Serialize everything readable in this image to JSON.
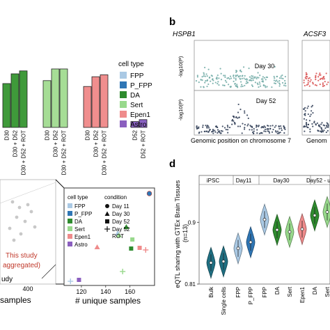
{
  "panel_labels": {
    "b": "b",
    "d": "d"
  },
  "colors": {
    "FPP": "#aac9e4",
    "P_FPP": "#2f76b5",
    "DA": "#2e8b2e",
    "Sert": "#98d98c",
    "Epen1": "#ef8b8b",
    "Astro": "#8b5fbf",
    "ipsc": "#1f6f82",
    "manh_teal": "#6fa9a4",
    "manh_dark": "#2b3a52",
    "manh_red": "#d84a4a"
  },
  "chart_data": [
    {
      "type": "bar",
      "panel": "a-top",
      "categories": [
        "D30",
        "D30 + D52",
        "D30 + D52 + ROT",
        "D30",
        "D30 + D52",
        "D30 + D52 + ROT",
        "D30",
        "D30 + D52",
        "D30 + D52 + ROT",
        "D52",
        "D52 + ROT"
      ],
      "group_colors": [
        "DA",
        "DA",
        "DA",
        "Sert",
        "Sert",
        "Sert",
        "Epen1",
        "Epen1",
        "Epen1",
        "Astro",
        "Astro"
      ],
      "values": [
        0.45,
        0.55,
        0.58,
        0.48,
        0.6,
        0.6,
        0.42,
        0.52,
        0.54,
        0.06,
        0.08
      ],
      "legend_title": "cell type",
      "legend": [
        "FPP",
        "P_FPP",
        "DA",
        "Sert",
        "Epen1",
        "Astro"
      ]
    },
    {
      "type": "scatter",
      "panel": "a-bottom",
      "xlabel": "# unique samples",
      "x_ticks": [
        "120",
        "140",
        "160"
      ],
      "left_label": "samples",
      "left_tick": "400",
      "annotation": "This study\n(aggregated)",
      "annotation_partial": "udy",
      "legend_cell_title": "cell type",
      "legend_condition_title": "condition",
      "legend_cells": [
        "FPP",
        "P_FPP",
        "DA",
        "Sert",
        "Epen1",
        "Astro"
      ],
      "legend_conditions": [
        "Day 11",
        "Day 30",
        "Day 52",
        "Day 52\nROT"
      ],
      "points": [
        {
          "x": 118,
          "cell": "Astro",
          "cond": "Day 52"
        },
        {
          "x": 111,
          "cell": "FPP",
          "cond": "Day 52 ROT"
        },
        {
          "x": 133,
          "cell": "Epen1",
          "cond": "Day 30"
        },
        {
          "x": 150,
          "cell": "FPP",
          "cond": "Day 30"
        },
        {
          "x": 151,
          "cell": "Sert",
          "cond": "Day 30"
        },
        {
          "x": 154,
          "cell": "Sert",
          "cond": "Day 52 ROT"
        },
        {
          "x": 157,
          "cell": "DA",
          "cond": "Day 30"
        },
        {
          "x": 161,
          "cell": "DA",
          "cond": "Day 52"
        },
        {
          "x": 162,
          "cell": "Sert",
          "cond": "Day 52"
        },
        {
          "x": 168,
          "cell": "Epen1",
          "cond": "Day 52"
        },
        {
          "x": 173,
          "cell": "Epen1",
          "cond": "Day 52 ROT"
        },
        {
          "x": 176,
          "cell": "P_FPP",
          "cond": "Day 11"
        }
      ]
    },
    {
      "type": "scatter",
      "panel": "b",
      "gene_left": "HSPB1",
      "gene_right": "ACSF3",
      "ylabel": "-log10(P)",
      "xlabel": "Genomic position on chromosome 7",
      "xlabel_right": "Genom",
      "tracks": [
        {
          "label": "Day 30"
        },
        {
          "label": "Day 52"
        }
      ]
    },
    {
      "type": "violin",
      "panel": "d",
      "ylabel": "eQTL sharing with GTEx Brain Tissues\n(n=13)",
      "y_ticks": [
        "0.9",
        "0.81"
      ],
      "ylim": [
        0.81,
        0.95
      ],
      "group_labels": [
        "iPSC",
        "Day11",
        "Day30",
        "Day52 - u"
      ],
      "categories": [
        "Bulk",
        "Single cells",
        "FPP",
        "P_FPP",
        "FPP",
        "DA",
        "Sert",
        "Epen1",
        "DA",
        "Sert"
      ],
      "colors": [
        "ipsc",
        "ipsc",
        "FPP",
        "P_FPP",
        "FPP",
        "DA",
        "Sert",
        "Epen1",
        "DA",
        "Sert"
      ],
      "medians": [
        0.841,
        0.843,
        0.862,
        0.871,
        0.904,
        0.889,
        0.886,
        0.89,
        0.91,
        0.915
      ]
    }
  ]
}
